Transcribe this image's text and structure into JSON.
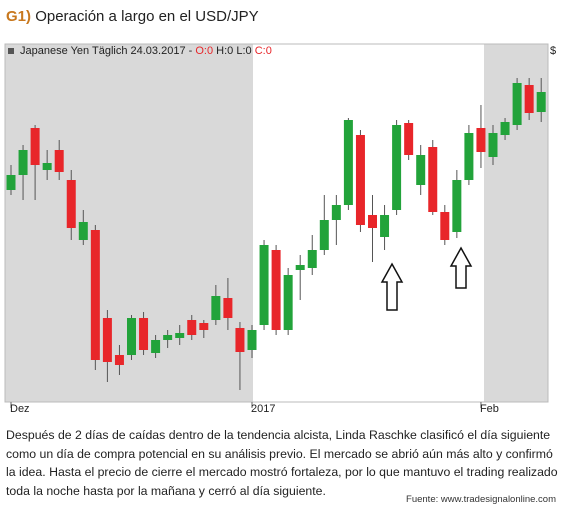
{
  "chart_data": {
    "type": "candlestick",
    "figure_label": "G1)",
    "title": "Operación a largo en el USD/JPY",
    "legend": {
      "name": "Japanese Yen Täglich",
      "date": "24.03.2017 -",
      "open": "O:0",
      "high_low": "H:0 L:0",
      "close": "C:0"
    },
    "currency": "$",
    "up_color": "#22a33a",
    "down_color": "#e8262a",
    "ylim": [
      0,
      360
    ],
    "categories": [
      "Dez",
      null,
      null,
      null,
      null,
      null,
      null,
      null,
      null,
      null,
      null,
      null,
      null,
      null,
      null,
      null,
      null,
      null,
      null,
      null,
      "2017",
      null,
      null,
      null,
      null,
      null,
      null,
      null,
      null,
      null,
      null,
      null,
      null,
      null,
      null,
      null,
      null,
      null,
      null,
      "Feb",
      null,
      null,
      null,
      null,
      null
    ],
    "open": [
      210,
      225,
      272,
      230,
      250,
      220,
      160,
      170,
      82,
      45,
      45,
      82,
      47,
      60,
      62,
      80,
      77,
      80,
      102,
      72,
      50,
      75,
      150,
      70,
      130,
      132,
      150,
      180,
      195,
      265,
      185,
      163,
      190,
      277,
      215,
      253,
      188,
      168,
      220,
      272,
      243,
      265,
      275,
      315,
      288
    ],
    "high": [
      235,
      255,
      275,
      250,
      260,
      230,
      190,
      175,
      90,
      55,
      85,
      88,
      65,
      70,
      75,
      85,
      80,
      115,
      122,
      78,
      75,
      160,
      155,
      132,
      145,
      165,
      205,
      205,
      282,
      270,
      205,
      195,
      280,
      280,
      255,
      260,
      195,
      230,
      275,
      295,
      275,
      282,
      322,
      322,
      322
    ],
    "low": [
      205,
      200,
      200,
      220,
      220,
      160,
      155,
      30,
      18,
      25,
      40,
      45,
      42,
      52,
      55,
      60,
      62,
      75,
      70,
      10,
      42,
      70,
      65,
      65,
      100,
      125,
      145,
      155,
      190,
      168,
      138,
      150,
      185,
      240,
      205,
      185,
      155,
      162,
      215,
      232,
      235,
      260,
      270,
      280,
      278
    ],
    "close": [
      225,
      250,
      235,
      237,
      228,
      172,
      178,
      40,
      38,
      35,
      82,
      50,
      60,
      65,
      67,
      65,
      70,
      104,
      82,
      48,
      70,
      155,
      70,
      125,
      135,
      150,
      180,
      195,
      280,
      175,
      172,
      185,
      275,
      245,
      245,
      188,
      160,
      220,
      267,
      248,
      267,
      278,
      317,
      287,
      308
    ]
  },
  "caption": "Después de 2 días de caídas dentro de la tendencia alcista, Linda Raschke clasificó el día siguiente como un día de compra potencial en su análisis previo. El mercado se abrió aún más alto y confirmó la idea. Hasta el precio de cierre el mercado mostró fortaleza, por lo que mantuvo el trading realizado toda la noche hasta por la mañana y cerró al día siguiente.",
  "source": "Fuente: www.tradesignalonline.com"
}
